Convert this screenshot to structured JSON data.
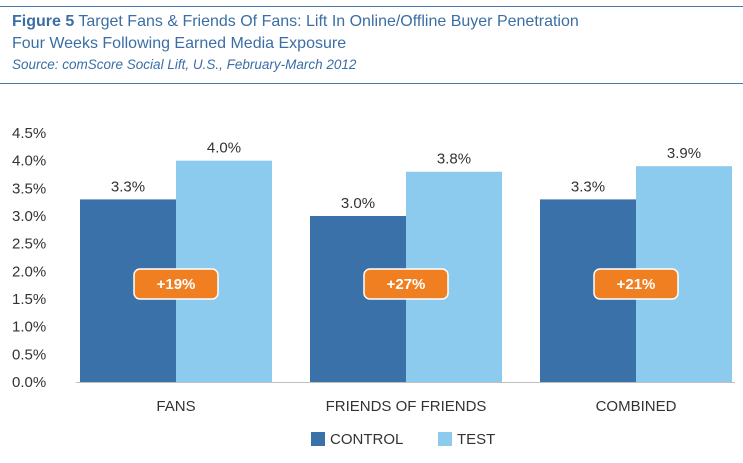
{
  "header": {
    "figure_label": "Figure 5",
    "title": "Target Fans & Friends Of Fans: Lift In Online/Offline Buyer Penetration",
    "subtitle": "Four Weeks Following Earned Media Exposure",
    "source": "Source: comScore Social Lift, U.S., February-March 2012"
  },
  "colors": {
    "control": "#3a71a8",
    "test": "#8ccbee",
    "badge": "#f07f21",
    "title": "#3a6ea5"
  },
  "chart_data": {
    "type": "bar",
    "categories": [
      "FANS",
      "FRIENDS OF FRIENDS",
      "COMBINED"
    ],
    "series": [
      {
        "name": "CONTROL",
        "values": [
          3.3,
          3.0,
          3.3
        ],
        "labels": [
          "3.3%",
          "3.0%",
          "3.3%"
        ]
      },
      {
        "name": "TEST",
        "values": [
          4.0,
          3.8,
          3.9
        ],
        "labels": [
          "4.0%",
          "3.8%",
          "3.9%"
        ]
      }
    ],
    "lift_labels": [
      "+19%",
      "+27%",
      "+21%"
    ],
    "ylim": [
      0,
      4.5
    ],
    "yticks": [
      "0.0%",
      "0.5%",
      "1.0%",
      "1.5%",
      "2.0%",
      "2.5%",
      "3.0%",
      "3.5%",
      "4.0%",
      "4.5%"
    ],
    "ytick_values": [
      0,
      0.5,
      1.0,
      1.5,
      2.0,
      2.5,
      3.0,
      3.5,
      4.0,
      4.5
    ],
    "grid": false,
    "legend_position": "bottom"
  }
}
